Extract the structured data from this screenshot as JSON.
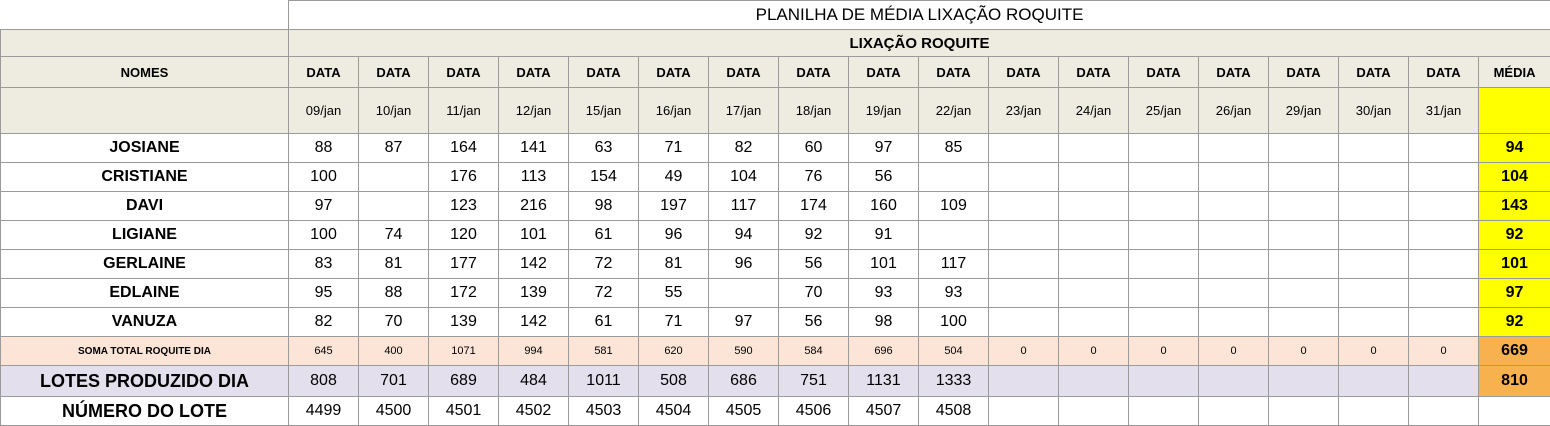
{
  "title": "PLANILHA DE MÉDIA LIXAÇÃO ROQUITE",
  "subtitle": "LIXAÇÃO ROQUITE",
  "names_header": "NOMES",
  "data_header": "DATA",
  "media_header": "MÉDIA",
  "dates": [
    "09/jan",
    "10/jan",
    "11/jan",
    "12/jan",
    "15/jan",
    "16/jan",
    "17/jan",
    "18/jan",
    "19/jan",
    "22/jan",
    "23/jan",
    "24/jan",
    "25/jan",
    "26/jan",
    "29/jan",
    "30/jan",
    "31/jan"
  ],
  "rows": [
    {
      "name": "JOSIANE",
      "values": [
        "88",
        "87",
        "164",
        "141",
        "63",
        "71",
        "82",
        "60",
        "97",
        "85",
        "",
        "",
        "",
        "",
        "",
        "",
        ""
      ],
      "media": "94"
    },
    {
      "name": "CRISTIANE",
      "values": [
        "100",
        "",
        "176",
        "113",
        "154",
        "49",
        "104",
        "76",
        "56",
        "",
        "",
        "",
        "",
        "",
        "",
        "",
        ""
      ],
      "media": "104"
    },
    {
      "name": "DAVI",
      "values": [
        "97",
        "",
        "123",
        "216",
        "98",
        "197",
        "117",
        "174",
        "160",
        "109",
        "",
        "",
        "",
        "",
        "",
        "",
        ""
      ],
      "media": "143"
    },
    {
      "name": "LIGIANE",
      "values": [
        "100",
        "74",
        "120",
        "101",
        "61",
        "96",
        "94",
        "92",
        "91",
        "",
        "",
        "",
        "",
        "",
        "",
        "",
        ""
      ],
      "media": "92"
    },
    {
      "name": "GERLAINE",
      "values": [
        "83",
        "81",
        "177",
        "142",
        "72",
        "81",
        "96",
        "56",
        "101",
        "117",
        "",
        "",
        "",
        "",
        "",
        "",
        ""
      ],
      "media": "101"
    },
    {
      "name": "EDLAINE",
      "values": [
        "95",
        "88",
        "172",
        "139",
        "72",
        "55",
        "",
        "70",
        "93",
        "93",
        "",
        "",
        "",
        "",
        "",
        "",
        ""
      ],
      "media": "97"
    },
    {
      "name": "VANUZA",
      "values": [
        "82",
        "70",
        "139",
        "142",
        "61",
        "71",
        "97",
        "56",
        "98",
        "100",
        "",
        "",
        "",
        "",
        "",
        "",
        ""
      ],
      "media": "92"
    }
  ],
  "soma": {
    "label": "SOMA TOTAL  ROQUITE DIA",
    "values": [
      "645",
      "400",
      "1071",
      "994",
      "581",
      "620",
      "590",
      "584",
      "696",
      "504",
      "0",
      "0",
      "0",
      "0",
      "0",
      "0",
      "0"
    ],
    "media": "669"
  },
  "lotes": {
    "label": "LOTES PRODUZIDO DIA",
    "values": [
      "808",
      "701",
      "689",
      "484",
      "1011",
      "508",
      "686",
      "751",
      "1131",
      "1333",
      "",
      "",
      "",
      "",
      "",
      "",
      ""
    ],
    "media": "810"
  },
  "numero": {
    "label": "NÚMERO DO LOTE",
    "values": [
      "4499",
      "4500",
      "4501",
      "4502",
      "4503",
      "4504",
      "4505",
      "4506",
      "4507",
      "4508",
      "",
      "",
      "",
      "",
      "",
      "",
      ""
    ],
    "media": ""
  },
  "colors": {
    "header_bg": "#eeece1",
    "soma_bg": "#fce4d6",
    "lotes_bg": "#e4dfec",
    "media_bg": "#ffff00",
    "media_total_bg": "#f7b14f"
  }
}
